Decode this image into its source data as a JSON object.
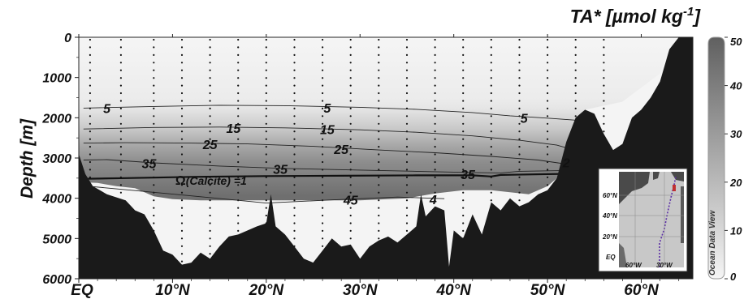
{
  "chart_data": {
    "type": "heatmap",
    "title": "TA* [µmol kg-1]",
    "title_main": "TA* [µmol kg",
    "title_sup": "-1",
    "title_end": "]",
    "ylabel": "Depth [m]",
    "xlabel": "",
    "x_ticks": [
      "EQ",
      "10°N",
      "20°N",
      "30°N",
      "40°N",
      "50°N",
      "60°N"
    ],
    "x_tick_values": [
      0,
      10,
      20,
      30,
      40,
      50,
      60
    ],
    "xlim": [
      0,
      65.5
    ],
    "y_ticks": [
      "0",
      "1000",
      "2000",
      "3000",
      "4000",
      "5000",
      "6000"
    ],
    "y_tick_values": [
      0,
      1000,
      2000,
      3000,
      4000,
      5000,
      6000
    ],
    "ylim": [
      0,
      6000
    ],
    "y_inverted": true,
    "colorbar": {
      "ticks": [
        "0",
        "10",
        "20",
        "30",
        "40",
        "50"
      ],
      "tick_values": [
        0,
        10,
        20,
        30,
        40,
        50
      ],
      "range": [
        0,
        50
      ],
      "low_color": "#f5f5f5",
      "high_color": "#606060",
      "watermark": "Ocean Data View"
    },
    "contours": [
      {
        "level": 5,
        "labels": [
          "5",
          "5",
          "5"
        ],
        "points": [
          [
            0.5,
            1760
          ],
          [
            8,
            1720
          ],
          [
            15,
            1690
          ],
          [
            22,
            1700
          ],
          [
            30,
            1740
          ],
          [
            36,
            1790
          ],
          [
            42,
            1870
          ],
          [
            46,
            1950
          ],
          [
            50,
            2010
          ],
          [
            53,
            2060
          ]
        ]
      },
      {
        "level": 15,
        "labels": [
          "15",
          "15"
        ],
        "points": [
          [
            0.5,
            2280
          ],
          [
            8,
            2240
          ],
          [
            15,
            2230
          ],
          [
            22,
            2250
          ],
          [
            30,
            2300
          ],
          [
            36,
            2360
          ],
          [
            42,
            2450
          ],
          [
            47,
            2560
          ],
          [
            51,
            2680
          ],
          [
            52.5,
            2780
          ]
        ]
      },
      {
        "level": 25,
        "labels": [
          "25",
          "25",
          "2"
        ],
        "points": [
          [
            0.5,
            2630
          ],
          [
            5,
            2620
          ],
          [
            12,
            2630
          ],
          [
            18,
            2650
          ],
          [
            25,
            2710
          ],
          [
            32,
            2800
          ],
          [
            38,
            2870
          ],
          [
            44,
            2960
          ],
          [
            49,
            3050
          ],
          [
            52,
            3150
          ]
        ]
      },
      {
        "level": 35,
        "labels": [
          "35",
          "35",
          "35"
        ],
        "points": [
          [
            0.5,
            3050
          ],
          [
            3,
            3040
          ],
          [
            8,
            3120
          ],
          [
            15,
            3200
          ],
          [
            22,
            3260
          ],
          [
            30,
            3300
          ],
          [
            36,
            3330
          ],
          [
            42,
            3360
          ],
          [
            45,
            3370
          ],
          [
            47,
            3330
          ],
          [
            52,
            3310
          ],
          [
            53,
            3300
          ]
        ]
      },
      {
        "level": 45,
        "labels": [
          "45",
          "4"
        ],
        "points": [
          [
            1,
            3700
          ],
          [
            6,
            3810
          ],
          [
            12,
            3940
          ],
          [
            20,
            4120
          ],
          [
            27,
            4040
          ],
          [
            34,
            3970
          ],
          [
            39,
            4010
          ]
        ]
      }
    ],
    "saturation_line": {
      "label_prefix": "Ω",
      "label_text": "(Calcite) =1",
      "points": [
        [
          0,
          3520
        ],
        [
          5,
          3500
        ],
        [
          12,
          3470
        ],
        [
          20,
          3450
        ],
        [
          28,
          3440
        ],
        [
          36,
          3430
        ],
        [
          42,
          3430
        ],
        [
          44,
          3460
        ],
        [
          45,
          3420
        ],
        [
          50,
          3400
        ],
        [
          53,
          3390
        ]
      ]
    },
    "bathymetry": [
      [
        0,
        2900
      ],
      [
        0.7,
        3400
      ],
      [
        1.5,
        3700
      ],
      [
        3,
        3900
      ],
      [
        5,
        4050
      ],
      [
        6,
        4300
      ],
      [
        7,
        4400
      ],
      [
        8,
        4800
      ],
      [
        9,
        5300
      ],
      [
        10,
        5400
      ],
      [
        11,
        5650
      ],
      [
        12,
        5600
      ],
      [
        13,
        5350
      ],
      [
        14,
        5500
      ],
      [
        15,
        5200
      ],
      [
        16,
        4950
      ],
      [
        17,
        4900
      ],
      [
        18,
        4800
      ],
      [
        19,
        4700
      ],
      [
        20,
        4620
      ],
      [
        20.5,
        3900
      ],
      [
        21,
        4700
      ],
      [
        22,
        4900
      ],
      [
        23,
        5200
      ],
      [
        24,
        5500
      ],
      [
        25,
        5600
      ],
      [
        26,
        5300
      ],
      [
        27,
        5000
      ],
      [
        28,
        5200
      ],
      [
        29,
        5150
      ],
      [
        30,
        5500
      ],
      [
        31,
        5200
      ],
      [
        32,
        5050
      ],
      [
        33,
        4950
      ],
      [
        34,
        5100
      ],
      [
        35,
        4900
      ],
      [
        36,
        4700
      ],
      [
        36.5,
        3900
      ],
      [
        37,
        4450
      ],
      [
        38,
        4200
      ],
      [
        39,
        4300
      ],
      [
        39.5,
        5700
      ],
      [
        40,
        4800
      ],
      [
        41,
        5000
      ],
      [
        42,
        4400
      ],
      [
        43,
        4900
      ],
      [
        44,
        4100
      ],
      [
        45,
        4300
      ],
      [
        46,
        4000
      ],
      [
        47,
        4200
      ],
      [
        48,
        4100
      ],
      [
        49,
        3900
      ],
      [
        50,
        3800
      ],
      [
        51,
        3500
      ],
      [
        52,
        2600
      ],
      [
        53,
        2000
      ],
      [
        54,
        1800
      ],
      [
        55,
        1900
      ],
      [
        56,
        2400
      ],
      [
        57,
        2800
      ],
      [
        58,
        2650
      ],
      [
        59,
        2000
      ],
      [
        60,
        1800
      ],
      [
        61,
        1500
      ],
      [
        62,
        1100
      ],
      [
        63,
        300
      ],
      [
        64,
        0
      ],
      [
        65.5,
        0
      ]
    ],
    "white_fill": [
      [
        0,
        3600
      ],
      [
        2,
        3620
      ],
      [
        4,
        3700
      ],
      [
        6,
        3750
      ],
      [
        8,
        3950
      ],
      [
        10,
        4020
      ],
      [
        13,
        4050
      ],
      [
        20,
        4050
      ],
      [
        23,
        4050
      ],
      [
        30,
        4050
      ],
      [
        35,
        4000
      ],
      [
        38,
        3880
      ],
      [
        41,
        3800
      ],
      [
        44,
        3800
      ],
      [
        48,
        3900
      ],
      [
        50,
        3700
      ],
      [
        52,
        3300
      ],
      [
        53,
        2400
      ],
      [
        54,
        1800
      ],
      [
        58,
        1600
      ],
      [
        62,
        900
      ],
      [
        63,
        200
      ],
      [
        63.5,
        0
      ]
    ],
    "station_x": [
      1.2,
      4.5,
      8,
      11,
      14,
      17,
      20,
      23,
      26,
      29,
      32,
      35,
      38,
      41,
      44,
      47,
      50,
      53,
      56
    ],
    "inset_map": {
      "lat_labels": [
        "60°N",
        "40°N",
        "20°N",
        "EQ"
      ],
      "lon_labels": [
        "60°W",
        "30°W"
      ]
    }
  }
}
